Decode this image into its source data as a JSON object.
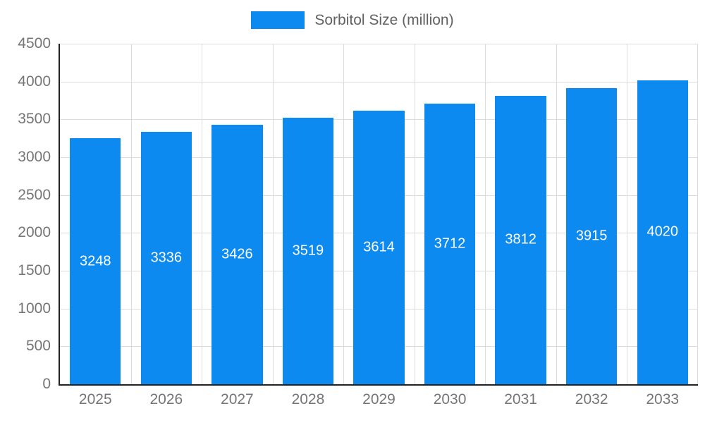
{
  "legend": {
    "label": "Sorbitol Size (million)"
  },
  "chart_data": {
    "type": "bar",
    "title": "Sorbitol Size (million)",
    "categories": [
      "2025",
      "2026",
      "2027",
      "2028",
      "2029",
      "2030",
      "2031",
      "2032",
      "2033"
    ],
    "values": [
      3248,
      3336,
      3426,
      3519,
      3614,
      3712,
      3812,
      3915,
      4020
    ],
    "xlabel": "",
    "ylabel": "",
    "ylim": [
      0,
      4500
    ],
    "yticks": [
      0,
      500,
      1000,
      1500,
      2000,
      2500,
      3000,
      3500,
      4000,
      4500
    ],
    "grid": true,
    "legend_position": "top",
    "bar_width_fraction": 0.72,
    "colors": {
      "bar": "#0d8af0",
      "bar_label": "#ffffff",
      "axis_line": "#222222",
      "gridline": "#dcdcdc",
      "tick_label": "#757575",
      "legend_text": "#616161",
      "background": "#ffffff"
    }
  }
}
